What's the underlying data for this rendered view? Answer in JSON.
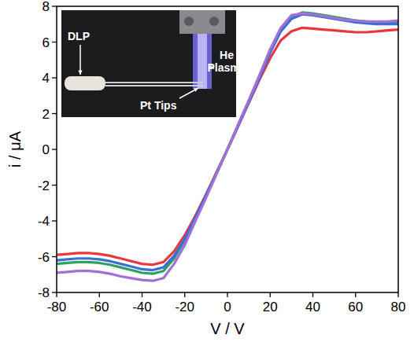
{
  "chart_data": {
    "type": "line",
    "x_label": "V / V",
    "y_label": "i / μA",
    "annotations": [
      "DLP",
      "He Plasma",
      "Pt Tips"
    ],
    "x": [
      -80,
      -75,
      -70,
      -65,
      -60,
      -55,
      -50,
      -45,
      -40,
      -35,
      -30,
      -25,
      -20,
      -15,
      -10,
      -5,
      0,
      5,
      10,
      15,
      20,
      25,
      30,
      35,
      40,
      45,
      50,
      55,
      60,
      65,
      70,
      75,
      80
    ],
    "series": [
      {
        "color": "#e8383d",
        "values": [
          -5.9,
          -5.85,
          -5.8,
          -5.8,
          -5.85,
          -5.95,
          -6.1,
          -6.25,
          -6.4,
          -6.45,
          -6.3,
          -5.7,
          -4.8,
          -3.7,
          -2.5,
          -1.25,
          0,
          1.3,
          2.6,
          3.9,
          5.1,
          6.1,
          6.6,
          6.8,
          6.75,
          6.7,
          6.65,
          6.6,
          6.55,
          6.55,
          6.6,
          6.65,
          6.7
        ]
      },
      {
        "color": "#2ca25f",
        "values": [
          -6.4,
          -6.35,
          -6.3,
          -6.3,
          -6.35,
          -6.45,
          -6.6,
          -6.75,
          -6.9,
          -6.95,
          -6.8,
          -6.1,
          -5.1,
          -3.9,
          -2.6,
          -1.3,
          0,
          1.35,
          2.7,
          4.1,
          5.5,
          6.7,
          7.4,
          7.65,
          7.6,
          7.5,
          7.4,
          7.3,
          7.2,
          7.15,
          7.1,
          7.1,
          7.1
        ]
      },
      {
        "color": "#3b6fd4",
        "values": [
          -6.2,
          -6.15,
          -6.1,
          -6.1,
          -6.15,
          -6.25,
          -6.4,
          -6.55,
          -6.7,
          -6.75,
          -6.6,
          -5.95,
          -5.0,
          -3.8,
          -2.55,
          -1.3,
          0,
          1.3,
          2.65,
          4.0,
          5.4,
          6.6,
          7.3,
          7.55,
          7.5,
          7.4,
          7.3,
          7.2,
          7.1,
          7.05,
          7.0,
          7.0,
          7.0
        ]
      },
      {
        "color": "#a46fd6",
        "values": [
          -6.9,
          -6.85,
          -6.8,
          -6.8,
          -6.85,
          -6.95,
          -7.1,
          -7.2,
          -7.3,
          -7.35,
          -7.2,
          -6.4,
          -5.35,
          -4.0,
          -2.7,
          -1.35,
          0,
          1.4,
          2.75,
          4.15,
          5.6,
          6.8,
          7.5,
          7.6,
          7.55,
          7.45,
          7.35,
          7.25,
          7.2,
          7.15,
          7.15,
          7.15,
          7.2
        ]
      }
    ],
    "xlim": [
      -80,
      80
    ],
    "ylim": [
      -8,
      8
    ],
    "xticks": [
      -80,
      -60,
      -40,
      -20,
      0,
      20,
      40,
      60,
      80
    ],
    "yticks": [
      -8,
      -6,
      -4,
      -2,
      0,
      2,
      4,
      6,
      8
    ],
    "grid": false
  }
}
